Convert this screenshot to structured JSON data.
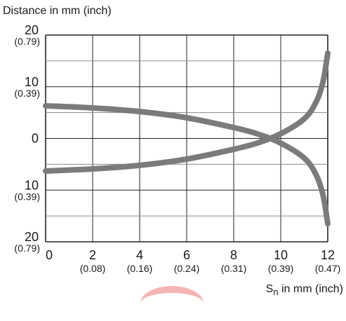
{
  "chart_data": {
    "type": "line",
    "title": "",
    "ylabel": "Distance in mm (inch)",
    "xlabel_main": "S",
    "xlabel_sub": "n",
    "xlabel_rest": " in mm (inch)",
    "xlim": [
      0,
      12
    ],
    "ylim": [
      -20,
      20
    ],
    "grid": true,
    "x_ticks": [
      {
        "value": 0,
        "label": "0",
        "sub": ""
      },
      {
        "value": 2,
        "label": "2",
        "sub": "(0.08)"
      },
      {
        "value": 4,
        "label": "4",
        "sub": "(0.16)"
      },
      {
        "value": 6,
        "label": "6",
        "sub": "(0.24)"
      },
      {
        "value": 8,
        "label": "8",
        "sub": "(0.31)"
      },
      {
        "value": 10,
        "label": "10",
        "sub": "(0.39)"
      },
      {
        "value": 12,
        "label": "12",
        "sub": "(0.47)"
      }
    ],
    "y_ticks": [
      {
        "value": 20,
        "label": "20",
        "sub": "(0.79)"
      },
      {
        "value": 10,
        "label": "10",
        "sub": "(0.39)"
      },
      {
        "value": 0,
        "label": "0",
        "sub": ""
      },
      {
        "value": -10,
        "label": "10",
        "sub": "(0.39)"
      },
      {
        "value": -20,
        "label": "20",
        "sub": "(0.79)"
      }
    ],
    "series": [
      {
        "color": "#7b7b7c",
        "x": [
          0,
          2,
          4,
          6,
          8,
          9,
          10,
          11,
          11.5,
          11.8,
          12
        ],
        "y": [
          6.3,
          5.9,
          5.2,
          4.0,
          2.1,
          0.9,
          -0.9,
          -3.8,
          -7.0,
          -11.0,
          -16.5
        ]
      },
      {
        "color": "#7b7b7c",
        "x": [
          0,
          2,
          4,
          6,
          8,
          9,
          10,
          11,
          11.5,
          11.8,
          12
        ],
        "y": [
          -6.3,
          -5.9,
          -5.2,
          -4.0,
          -2.1,
          -0.9,
          0.9,
          3.8,
          7.0,
          11.0,
          16.5
        ]
      }
    ]
  }
}
